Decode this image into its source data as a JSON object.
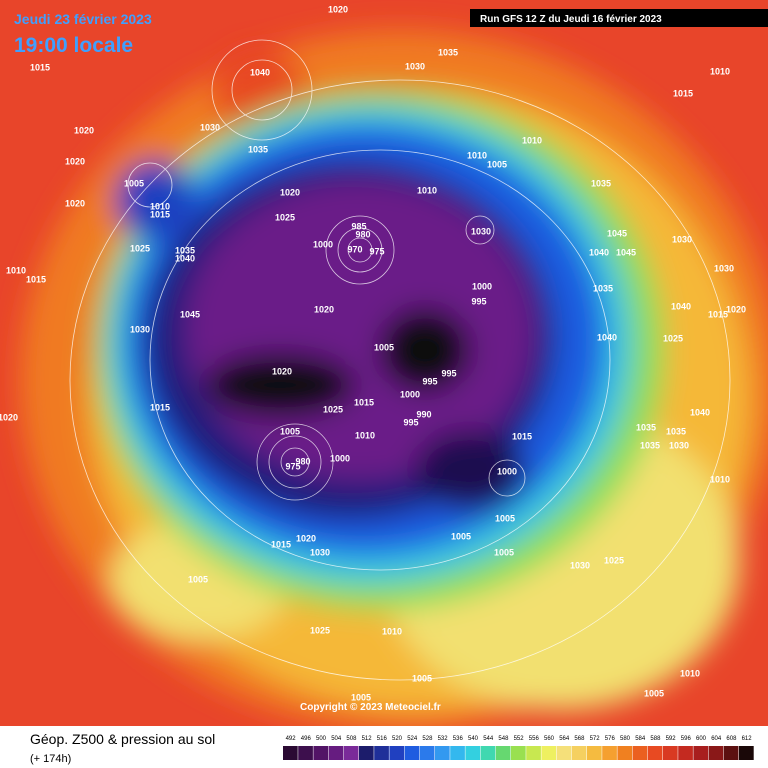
{
  "header": {
    "title": "Jeudi 23 février 2023",
    "subtitle": "19:00 locale",
    "run": "Run GFS 12 Z du Jeudi 16 février 2023"
  },
  "copyright": "Copyright © 2023 Meteociel.fr",
  "caption": {
    "title": "Géop. Z500 & pression au sol",
    "lead": "(+ 174h)"
  },
  "legend": {
    "values": [
      492,
      496,
      500,
      504,
      508,
      512,
      516,
      520,
      524,
      528,
      532,
      536,
      540,
      544,
      548,
      552,
      556,
      560,
      564,
      568,
      572,
      576,
      580,
      584,
      588,
      592,
      596,
      600,
      604,
      608,
      612
    ],
    "colors": [
      "#2b0a33",
      "#3d0f4d",
      "#521466",
      "#661c80",
      "#7a2a99",
      "#1c1c6b",
      "#1f2f99",
      "#2040c0",
      "#1f5ce0",
      "#2b7aeb",
      "#3399f0",
      "#33b8ee",
      "#33d0e0",
      "#40d8b0",
      "#66d870",
      "#99e050",
      "#c8e850",
      "#eef060",
      "#f5e07a",
      "#f5d060",
      "#f5bb40",
      "#f5a030",
      "#f08020",
      "#eb6020",
      "#e84a22",
      "#d93a22",
      "#c42a20",
      "#a81e1e",
      "#8a1818",
      "#5c1010",
      "#1a0808"
    ]
  },
  "pressure_labels": [
    "1015",
    "1040",
    "1020",
    "1030",
    "1035",
    "1030",
    "1035",
    "1010",
    "1015",
    "1020",
    "1020",
    "1005",
    "1010",
    "1015",
    "1020",
    "1020",
    "1025",
    "1025",
    "1035",
    "1040",
    "1010",
    "1015",
    "1000",
    "985",
    "980",
    "970",
    "975",
    "1010",
    "1010",
    "1005",
    "1010",
    "1030",
    "1035",
    "1045",
    "1040",
    "1045",
    "1030",
    "1030",
    "1035",
    "1000",
    "995",
    "1020",
    "1045",
    "1030",
    "1040",
    "1020",
    "1015",
    "1040",
    "1025",
    "1005",
    "1020",
    "995",
    "995",
    "1000",
    "990",
    "995",
    "1015",
    "1025",
    "1010",
    "1020",
    "1015",
    "1005",
    "1000",
    "980",
    "975",
    "1015",
    "1035",
    "1035",
    "1035",
    "1030",
    "1040",
    "1000",
    "1010",
    "1005",
    "1005",
    "1020",
    "1015",
    "1030",
    "1005",
    "1030",
    "1025",
    "1005",
    "1025",
    "1010",
    "1005",
    "1010",
    "1005",
    "1005"
  ]
}
